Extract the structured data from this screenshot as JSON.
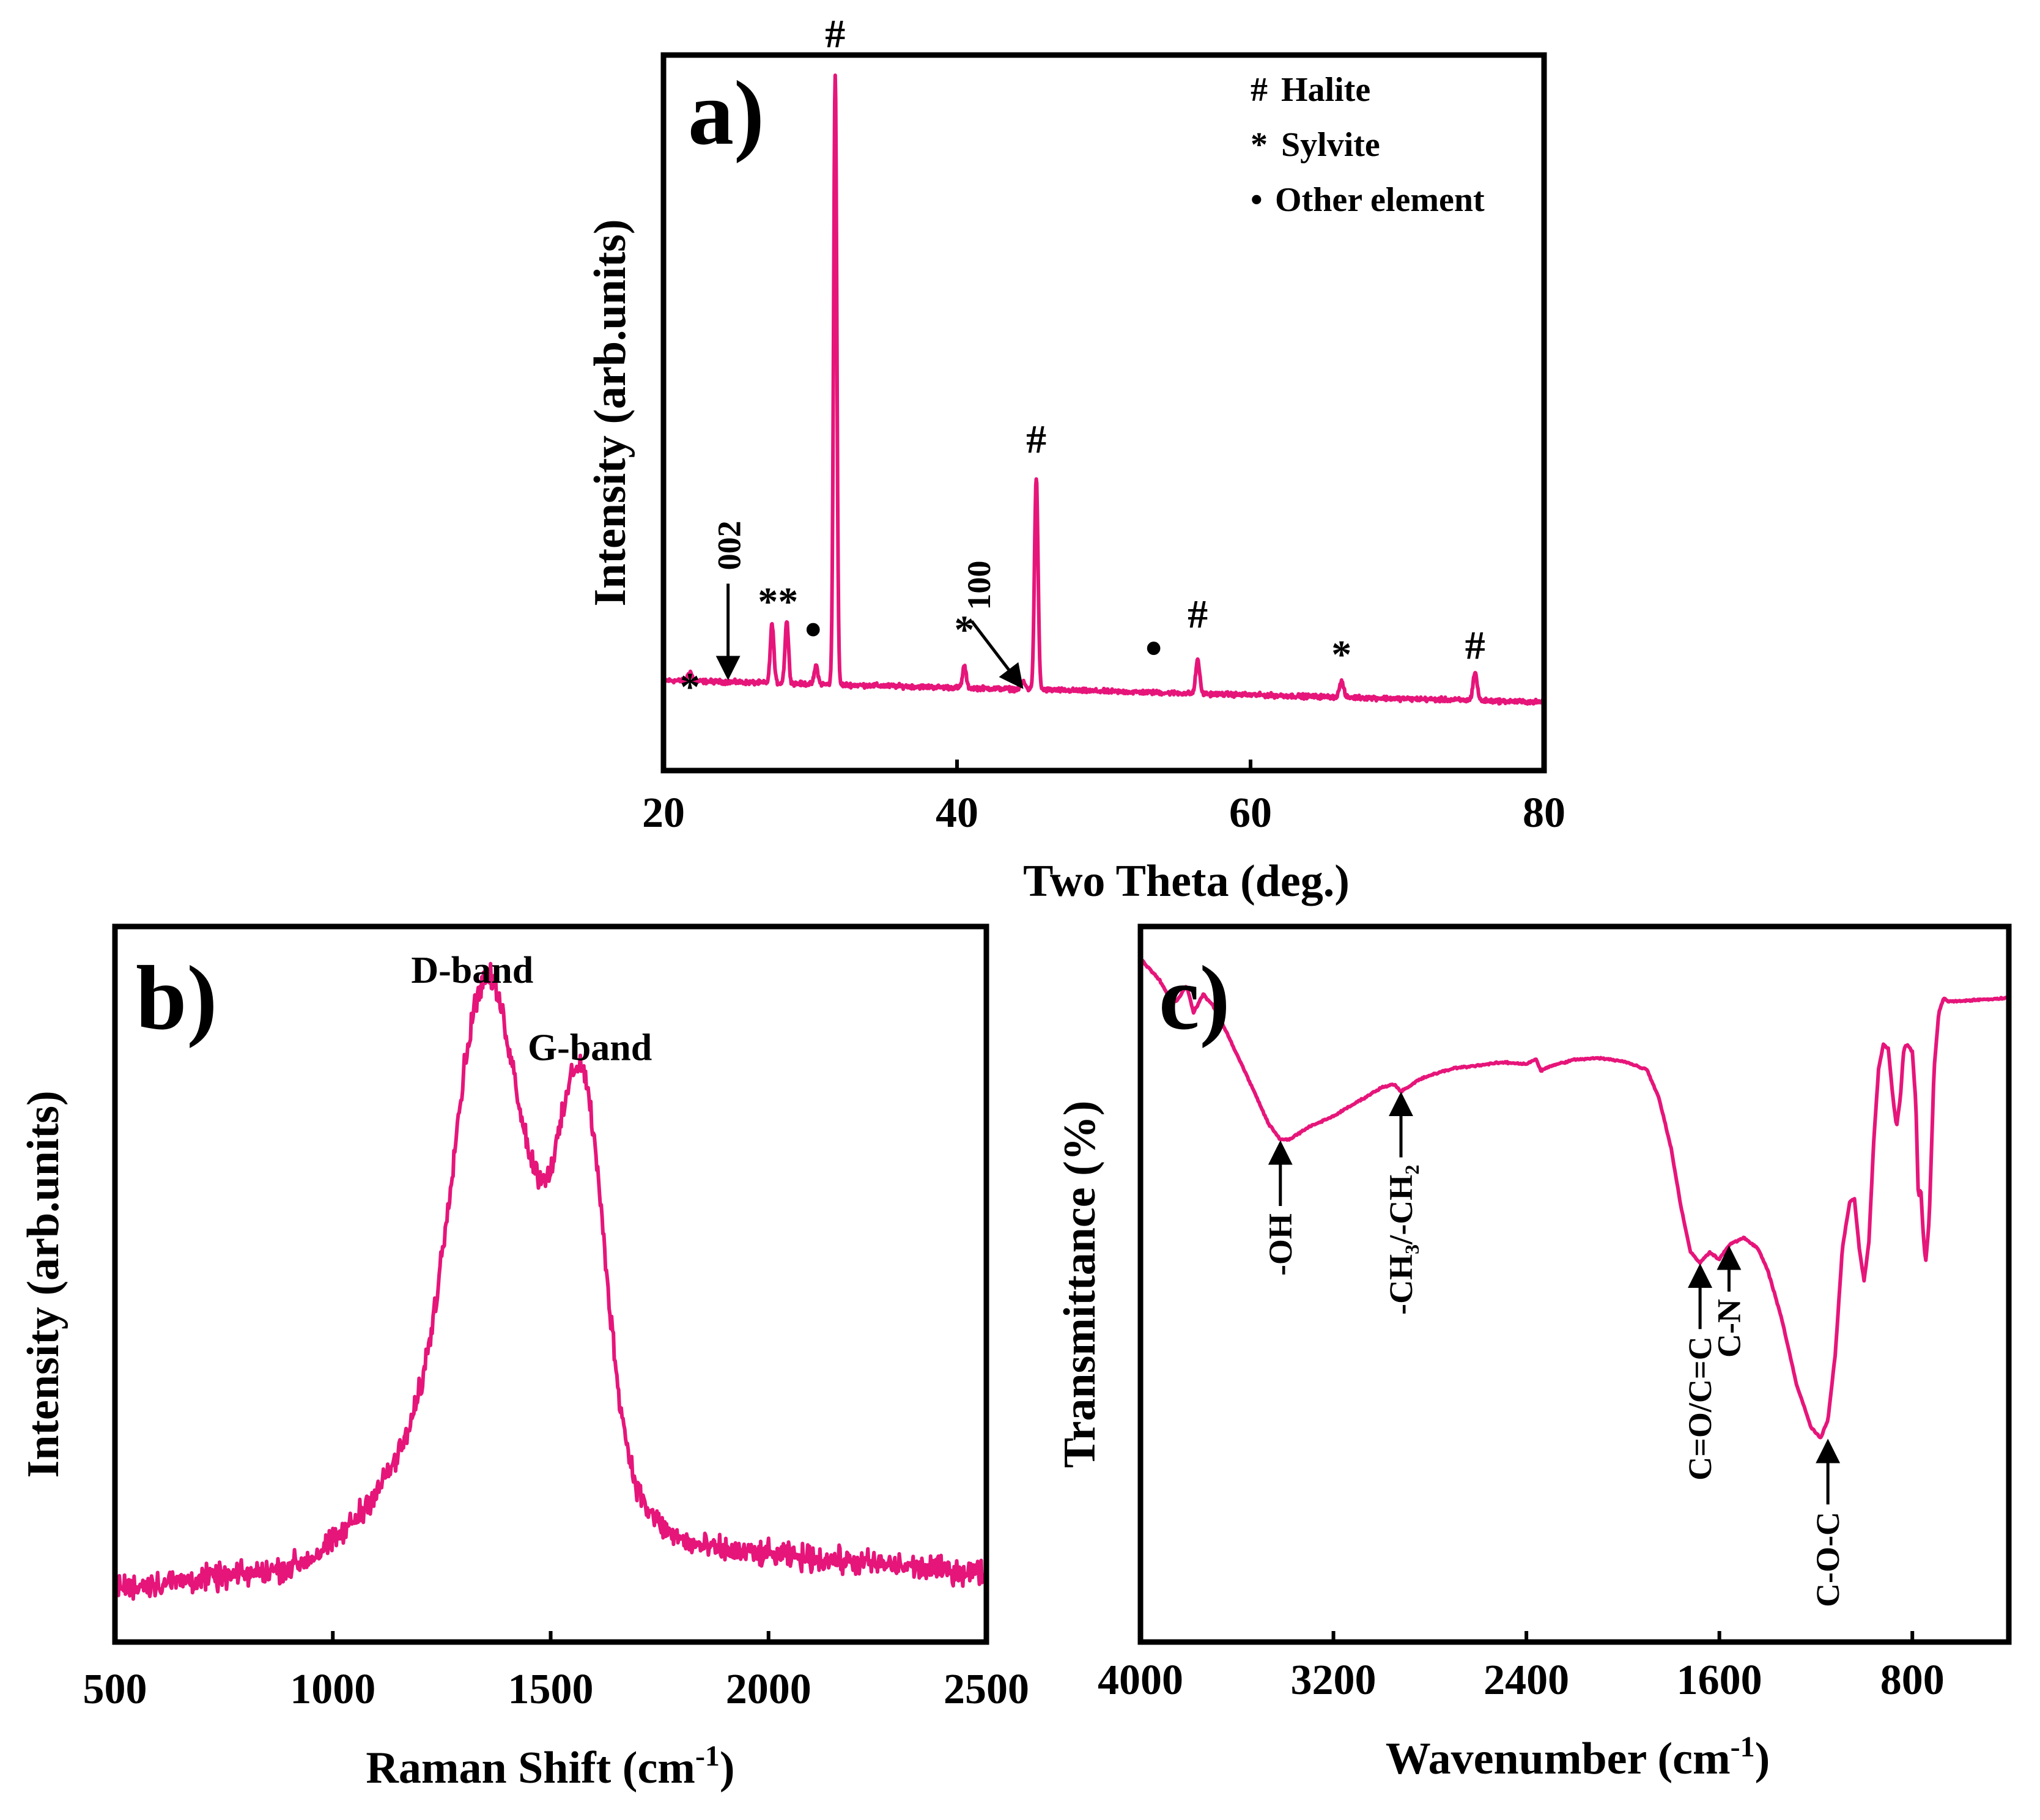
{
  "colors": {
    "line": "#e6157a",
    "axis": "#000000",
    "background": "#ffffff"
  },
  "chart_data": [
    {
      "panel": "a)",
      "type": "line",
      "xlabel": "Two Theta (deg.)",
      "ylabel": "Intensity (arb.units)",
      "xlim": [
        20,
        80
      ],
      "xticks": [
        20,
        40,
        60,
        80
      ],
      "ylim": [
        0,
        100
      ],
      "legend": {
        "position": "top-right",
        "entries": [
          {
            "symbol": "#",
            "label": "Halite"
          },
          {
            "symbol": "*",
            "label": "Sylvite"
          },
          {
            "symbol": "•",
            "label": "Other element"
          }
        ]
      },
      "baseline": [
        [
          20,
          12.5
        ],
        [
          80,
          9.0
        ]
      ],
      "peaks": [
        {
          "x": 21.8,
          "height": 1.5,
          "width": 0.14
        },
        {
          "x": 27.4,
          "height": 9.5,
          "width": 0.12
        },
        {
          "x": 28.4,
          "height": 10.0,
          "width": 0.12
        },
        {
          "x": 30.4,
          "height": 3.0,
          "width": 0.12
        },
        {
          "x": 31.7,
          "height": 98.0,
          "width": 0.11
        },
        {
          "x": 40.5,
          "height": 3.5,
          "width": 0.12
        },
        {
          "x": 44.5,
          "height": 1.2,
          "width": 0.15
        },
        {
          "x": 45.4,
          "height": 34.0,
          "width": 0.12
        },
        {
          "x": 56.4,
          "height": 5.5,
          "width": 0.13
        },
        {
          "x": 66.2,
          "height": 2.5,
          "width": 0.14
        },
        {
          "x": 75.3,
          "height": 4.5,
          "width": 0.14
        }
      ],
      "annotations": [
        {
          "text": "*",
          "x": 21.8,
          "y": 9.3
        },
        {
          "text": "**",
          "x": 27.8,
          "y": 23.0
        },
        {
          "text": "•",
          "x": 30.2,
          "y": 18.0
        },
        {
          "text": "#",
          "x": 31.7,
          "y": 114.0
        },
        {
          "text": "*",
          "x": 40.5,
          "y": 18.5
        },
        {
          "text": "#",
          "x": 45.4,
          "y": 49.0
        },
        {
          "text": "•",
          "x": 53.4,
          "y": 15.0
        },
        {
          "text": "#",
          "x": 56.4,
          "y": 21.0
        },
        {
          "text": "*",
          "x": 66.2,
          "y": 14.5
        },
        {
          "text": "#",
          "x": 75.3,
          "y": 16.0
        }
      ],
      "arrows": [
        {
          "label": "002",
          "x": 24.4,
          "tail_y": 28.0,
          "head_y": 13.0
        },
        {
          "label": "100",
          "x_tail": 41.0,
          "tail_y": 22.0,
          "x_head": 44.4,
          "head_y": 11.5
        }
      ]
    },
    {
      "panel": "b)",
      "type": "line",
      "xlabel": "Raman Shift (cm",
      "xlabel_superscript": "-1",
      "xlabel_end": ")",
      "ylabel": "Intensity (arb.units)",
      "xlim": [
        500,
        2500
      ],
      "xticks": [
        500,
        1000,
        1500,
        2000,
        2500
      ],
      "ylim": [
        0,
        100
      ],
      "baseline": [
        [
          500,
          6.0
        ],
        [
          1000,
          9.0
        ],
        [
          1750,
          12.0
        ],
        [
          2500,
          8.0
        ]
      ],
      "peaks": [
        {
          "x": 1200,
          "height": 14.0,
          "width": 120
        },
        {
          "x": 1342,
          "height": 55.0,
          "width": 72
        },
        {
          "x": 1480,
          "height": 38.0,
          "width": 120
        },
        {
          "x": 1575,
          "height": 40.0,
          "width": 48
        }
      ],
      "noise": 1.8,
      "annotations": [
        {
          "text": "D-band",
          "x": 1320,
          "y": 92.0
        },
        {
          "text": "G-band",
          "x": 1590,
          "y": 81.0
        }
      ]
    },
    {
      "panel": "c)",
      "type": "line",
      "xlabel": "Wavenumber (cm",
      "xlabel_superscript": "-1",
      "xlabel_end": ")",
      "ylabel": "Transmittance (%)",
      "xlim": [
        4000,
        400
      ],
      "xticks": [
        4000,
        3200,
        2400,
        1600,
        800
      ],
      "ylim": [
        0,
        100
      ],
      "points": [
        [
          4000,
          95.5
        ],
        [
          3920,
          92.5
        ],
        [
          3880,
          90.0
        ],
        [
          3850,
          89.5
        ],
        [
          3810,
          91.8
        ],
        [
          3780,
          88.0
        ],
        [
          3740,
          90.5
        ],
        [
          3700,
          89.0
        ],
        [
          3640,
          85.0
        ],
        [
          3550,
          78.5
        ],
        [
          3470,
          72.5
        ],
        [
          3420,
          70.2
        ],
        [
          3380,
          70.3
        ],
        [
          3300,
          72.0
        ],
        [
          3200,
          73.5
        ],
        [
          3100,
          75.5
        ],
        [
          3000,
          77.5
        ],
        [
          2950,
          78.0
        ],
        [
          2920,
          77.0
        ],
        [
          2890,
          77.5
        ],
        [
          2850,
          78.5
        ],
        [
          2800,
          79.2
        ],
        [
          2700,
          80.2
        ],
        [
          2600,
          80.6
        ],
        [
          2500,
          81.0
        ],
        [
          2400,
          80.8
        ],
        [
          2360,
          81.5
        ],
        [
          2340,
          79.8
        ],
        [
          2300,
          80.5
        ],
        [
          2200,
          81.4
        ],
        [
          2100,
          81.6
        ],
        [
          2000,
          81.2
        ],
        [
          1900,
          80.0
        ],
        [
          1850,
          76.0
        ],
        [
          1800,
          69.0
        ],
        [
          1760,
          61.0
        ],
        [
          1720,
          54.5
        ],
        [
          1680,
          53.0
        ],
        [
          1640,
          54.5
        ],
        [
          1600,
          53.5
        ],
        [
          1560,
          55.5
        ],
        [
          1500,
          56.5
        ],
        [
          1440,
          55.0
        ],
        [
          1400,
          52.0
        ],
        [
          1340,
          45.0
        ],
        [
          1280,
          36.0
        ],
        [
          1220,
          30.0
        ],
        [
          1180,
          28.5
        ],
        [
          1150,
          31.0
        ],
        [
          1120,
          40.0
        ],
        [
          1090,
          55.0
        ],
        [
          1060,
          61.5
        ],
        [
          1040,
          62.0
        ],
        [
          1020,
          55.0
        ],
        [
          1000,
          50.5
        ],
        [
          980,
          56.0
        ],
        [
          960,
          70.0
        ],
        [
          940,
          80.0
        ],
        [
          920,
          83.5
        ],
        [
          900,
          83.0
        ],
        [
          880,
          76.0
        ],
        [
          865,
          72.0
        ],
        [
          850,
          76.0
        ],
        [
          835,
          83.0
        ],
        [
          820,
          83.5
        ],
        [
          800,
          82.5
        ],
        [
          785,
          75.0
        ],
        [
          775,
          62.0
        ],
        [
          765,
          63.5
        ],
        [
          755,
          57.0
        ],
        [
          745,
          53.0
        ],
        [
          730,
          59.0
        ],
        [
          710,
          80.0
        ],
        [
          690,
          88.0
        ],
        [
          670,
          90.0
        ],
        [
          650,
          89.5
        ],
        [
          400,
          90.0
        ]
      ],
      "noise": 0.12,
      "annotations": [
        {
          "text": "-OH",
          "x": 3420,
          "tip_y": 70.2,
          "arrow_len": 32,
          "text_len": 6
        },
        {
          "text": "-CH₃/-CH₂",
          "x": 2920,
          "tip_y": 77.0,
          "arrow_len": 32,
          "text_len": 12
        },
        {
          "text": "C=O/C=C",
          "x": 1680,
          "tip_y": 53.0,
          "arrow_len": 32,
          "text_len": 10
        },
        {
          "text": "C-N",
          "x": 1560,
          "tip_y": 55.5,
          "arrow_len": 22,
          "text_len": 6
        },
        {
          "text": "C-O-C",
          "x": 1150,
          "tip_y": 28.5,
          "arrow_len": 32,
          "text_len": 9
        }
      ]
    }
  ]
}
